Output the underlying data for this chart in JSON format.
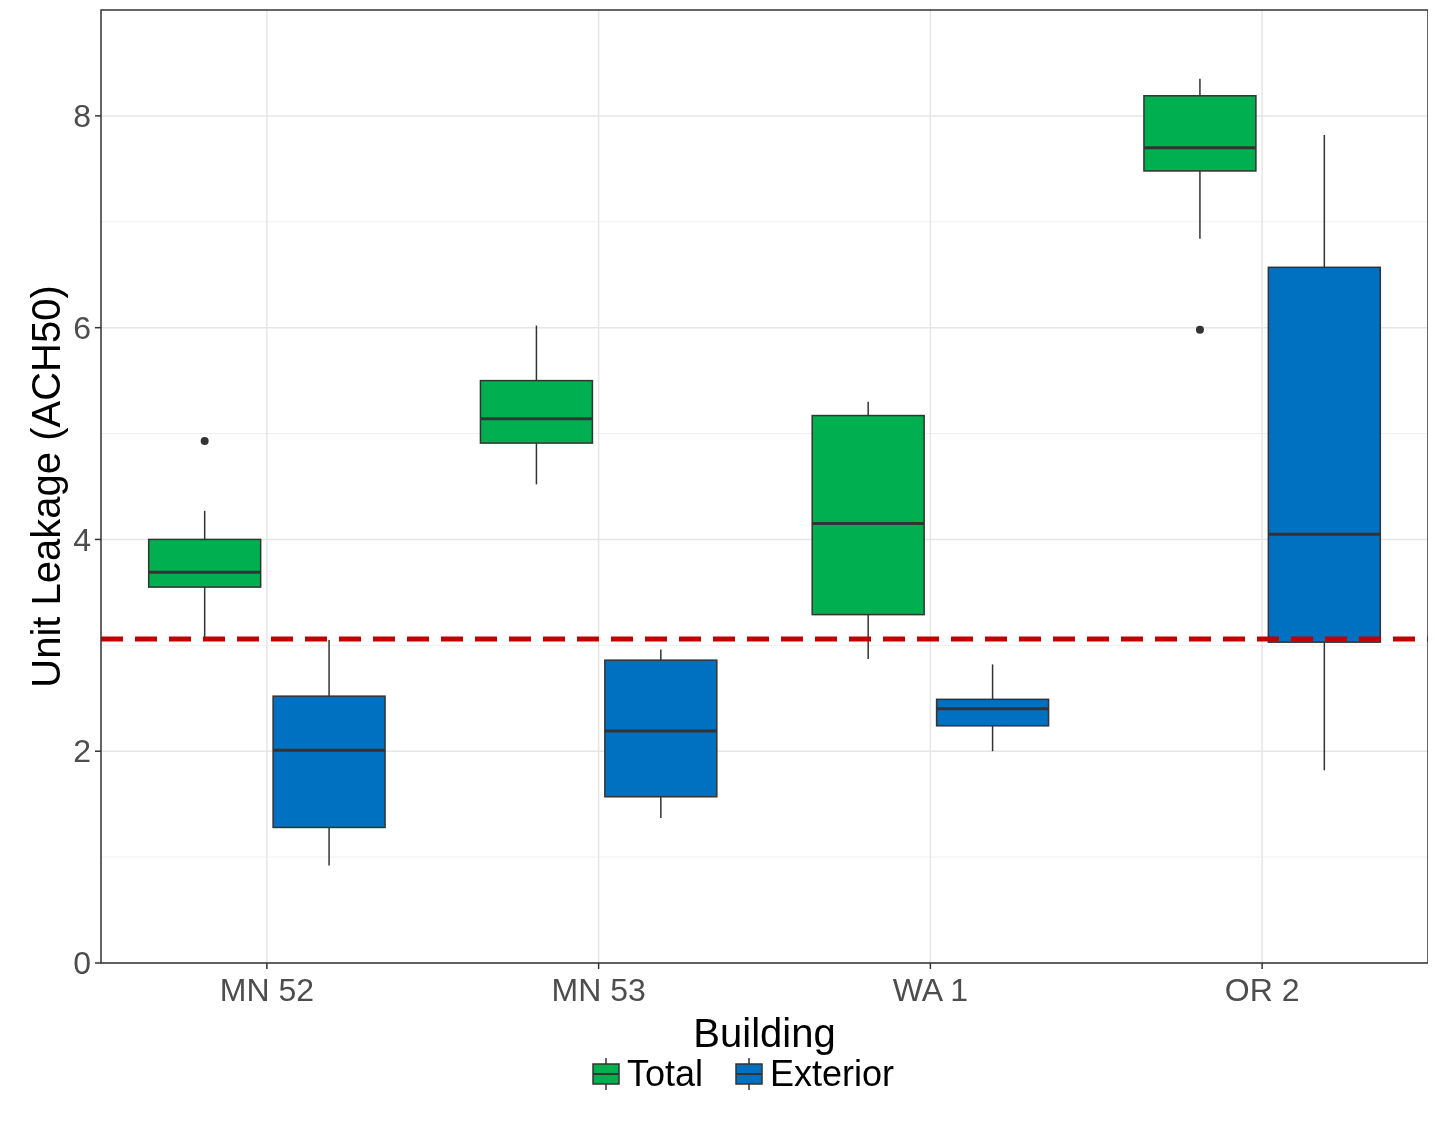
{
  "chart_data": {
    "type": "box",
    "xlabel": "Building",
    "ylabel": "Unit Leakage (ACH50)",
    "categories": [
      "MN 52",
      "MN 53",
      "WA 1",
      "OR 2"
    ],
    "ylim": [
      0,
      9.0
    ],
    "yticks": [
      0,
      2,
      4,
      6,
      8
    ],
    "grid": true,
    "legend": "bottom",
    "series": [
      {
        "name": "Total",
        "color": "#00b050",
        "boxes": [
          {
            "low": 3.05,
            "q1": 3.55,
            "median": 3.69,
            "q3": 4.0,
            "high": 4.27,
            "outliers": [
              4.93
            ]
          },
          {
            "low": 4.52,
            "q1": 4.91,
            "median": 5.14,
            "q3": 5.5,
            "high": 6.02
          },
          {
            "low": 2.87,
            "q1": 3.29,
            "median": 4.15,
            "q3": 5.17,
            "high": 5.3
          },
          {
            "low": 6.84,
            "q1": 7.48,
            "median": 7.7,
            "q3": 8.19,
            "high": 8.35,
            "outliers": [
              5.98
            ]
          }
        ]
      },
      {
        "name": "Exterior",
        "color": "#0070c0",
        "boxes": [
          {
            "low": 0.92,
            "q1": 1.28,
            "median": 2.01,
            "q3": 2.52,
            "high": 3.05
          },
          {
            "low": 1.37,
            "q1": 1.57,
            "median": 2.19,
            "q3": 2.86,
            "high": 2.96
          },
          {
            "low": 2.0,
            "q1": 2.24,
            "median": 2.4,
            "q3": 2.49,
            "high": 2.82
          },
          {
            "low": 1.82,
            "q1": 3.03,
            "median": 4.05,
            "q3": 6.57,
            "high": 7.82
          }
        ]
      }
    ],
    "ref_lines": [
      {
        "axis": "y",
        "value": 3.06,
        "color": "#c00000",
        "line_style": "dashed"
      }
    ]
  }
}
